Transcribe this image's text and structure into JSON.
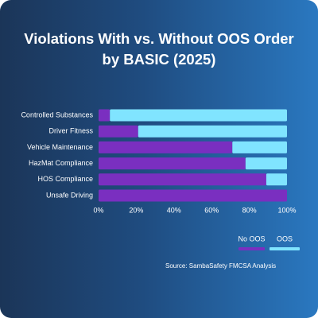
{
  "chart_data": {
    "type": "bar",
    "orientation": "horizontal",
    "stacked": true,
    "title": "Violations With vs. Without OOS Order by BASIC (2025)",
    "categories": [
      "Controlled Substances",
      "Driver Fitness",
      "Vehicle Maintenance",
      "HazMat Compliance",
      "HOS Compliance",
      "Unsafe Driving"
    ],
    "series": [
      {
        "name": "No OOS",
        "color": "#7a2fc0",
        "values": [
          6,
          21,
          71,
          78,
          89,
          100
        ]
      },
      {
        "name": "OOS",
        "color": "#80e4ff",
        "values": [
          94,
          79,
          29,
          22,
          11,
          0
        ]
      }
    ],
    "xlim": [
      0,
      100
    ],
    "xticks": [
      {
        "value": 0,
        "label": "0%"
      },
      {
        "value": 20,
        "label": "20%"
      },
      {
        "value": 40,
        "label": "40%"
      },
      {
        "value": 60,
        "label": "60%"
      },
      {
        "value": 80,
        "label": "80%"
      },
      {
        "value": 100,
        "label": "100%"
      }
    ],
    "legend": "bottom-right",
    "source": "Source: SambaSafety FMCSA Analysis"
  }
}
